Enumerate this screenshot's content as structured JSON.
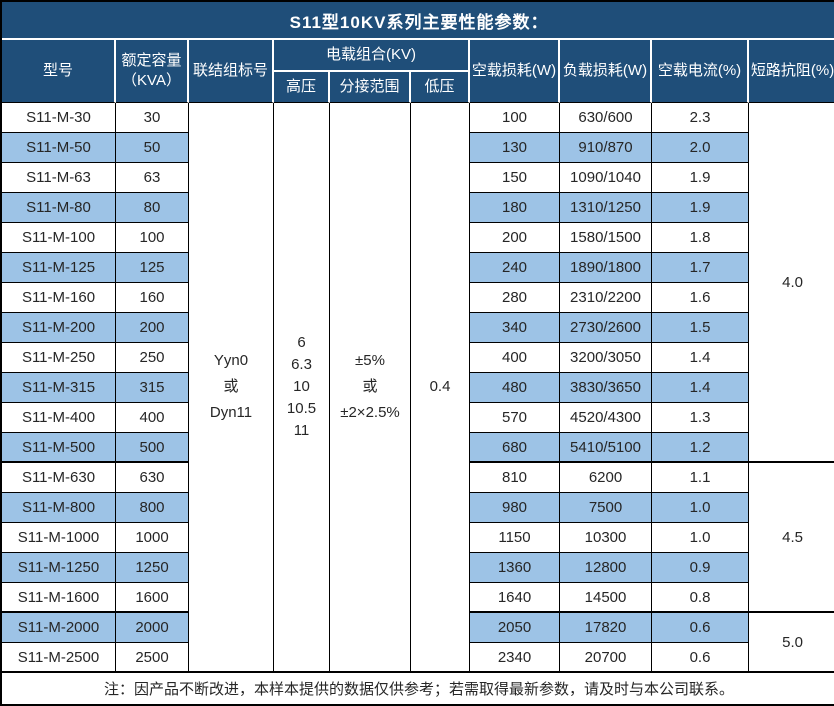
{
  "title": "S11型10KV系列主要性能参数：",
  "header": {
    "model": "型号",
    "capacity_line1": "额定容量",
    "capacity_line2": "（KVA）",
    "connection": "联结组标号",
    "voltage_group": "电载组合(KV)",
    "hv": "高压",
    "tap_range": "分接范围",
    "lv": "低压",
    "no_load_loss": "空载损耗(W)",
    "load_loss": "负载损耗(W)",
    "no_load_current": "空载电流(%)",
    "impedance": "短路抗阻(%)"
  },
  "merged": {
    "connection_lines": [
      "Yyn0",
      "或",
      "Dyn11"
    ],
    "hv_lines": [
      "6",
      "6.3",
      "10",
      "10.5",
      "11"
    ],
    "tap_lines": [
      "±5%",
      "或",
      "±2×2.5%"
    ],
    "lv_value": "0.4"
  },
  "impedance_groups": [
    {
      "value": "4.0",
      "span": 12
    },
    {
      "value": "4.5",
      "span": 5
    },
    {
      "value": "5.0",
      "span": 2
    }
  ],
  "rows": [
    {
      "model": "S11-M-30",
      "capacity": "30",
      "no_load_loss": "100",
      "load_loss": "630/600",
      "no_load_current": "2.3"
    },
    {
      "model": "S11-M-50",
      "capacity": "50",
      "no_load_loss": "130",
      "load_loss": "910/870",
      "no_load_current": "2.0"
    },
    {
      "model": "S11-M-63",
      "capacity": "63",
      "no_load_loss": "150",
      "load_loss": "1090/1040",
      "no_load_current": "1.9"
    },
    {
      "model": "S11-M-80",
      "capacity": "80",
      "no_load_loss": "180",
      "load_loss": "1310/1250",
      "no_load_current": "1.9"
    },
    {
      "model": "S11-M-100",
      "capacity": "100",
      "no_load_loss": "200",
      "load_loss": "1580/1500",
      "no_load_current": "1.8"
    },
    {
      "model": "S11-M-125",
      "capacity": "125",
      "no_load_loss": "240",
      "load_loss": "1890/1800",
      "no_load_current": "1.7"
    },
    {
      "model": "S11-M-160",
      "capacity": "160",
      "no_load_loss": "280",
      "load_loss": "2310/2200",
      "no_load_current": "1.6"
    },
    {
      "model": "S11-M-200",
      "capacity": "200",
      "no_load_loss": "340",
      "load_loss": "2730/2600",
      "no_load_current": "1.5"
    },
    {
      "model": "S11-M-250",
      "capacity": "250",
      "no_load_loss": "400",
      "load_loss": "3200/3050",
      "no_load_current": "1.4"
    },
    {
      "model": "S11-M-315",
      "capacity": "315",
      "no_load_loss": "480",
      "load_loss": "3830/3650",
      "no_load_current": "1.4"
    },
    {
      "model": "S11-M-400",
      "capacity": "400",
      "no_load_loss": "570",
      "load_loss": "4520/4300",
      "no_load_current": "1.3"
    },
    {
      "model": "S11-M-500",
      "capacity": "500",
      "no_load_loss": "680",
      "load_loss": "5410/5100",
      "no_load_current": "1.2"
    },
    {
      "model": "S11-M-630",
      "capacity": "630",
      "no_load_loss": "810",
      "load_loss": "6200",
      "no_load_current": "1.1"
    },
    {
      "model": "S11-M-800",
      "capacity": "800",
      "no_load_loss": "980",
      "load_loss": "7500",
      "no_load_current": "1.0"
    },
    {
      "model": "S11-M-1000",
      "capacity": "1000",
      "no_load_loss": "1150",
      "load_loss": "10300",
      "no_load_current": "1.0"
    },
    {
      "model": "S11-M-1250",
      "capacity": "1250",
      "no_load_loss": "1360",
      "load_loss": "12800",
      "no_load_current": "0.9"
    },
    {
      "model": "S11-M-1600",
      "capacity": "1600",
      "no_load_loss": "1640",
      "load_loss": "14500",
      "no_load_current": "0.8"
    },
    {
      "model": "S11-M-2000",
      "capacity": "2000",
      "no_load_loss": "2050",
      "load_loss": "17820",
      "no_load_current": "0.6"
    },
    {
      "model": "S11-M-2500",
      "capacity": "2500",
      "no_load_loss": "2340",
      "load_loss": "20700",
      "no_load_current": "0.6"
    }
  ],
  "note": "注：因产品不断改进，本样本提供的数据仅供参考；若需取得最新参数，请及时与本公司联系。",
  "colors": {
    "header_bg": "#1F4E79",
    "row_alt_bg": "#9DC3E6",
    "border": "#000000",
    "header_text": "#FFFFFF",
    "body_text": "#262626"
  }
}
